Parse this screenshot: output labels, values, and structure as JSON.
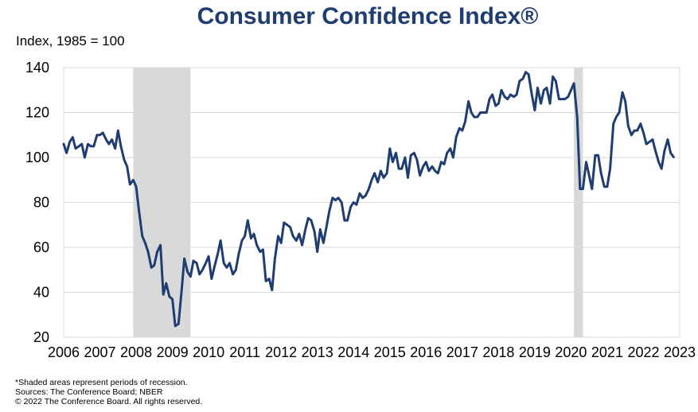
{
  "chart_data": {
    "type": "line",
    "title": "Consumer Confidence Index®",
    "ylabel": "Index, 1985 = 100",
    "xlabel": "",
    "ylim": [
      20,
      140
    ],
    "yticks": [
      20,
      40,
      60,
      80,
      100,
      120,
      140
    ],
    "xlim": [
      2006,
      2023
    ],
    "xticks": [
      2006,
      2007,
      2008,
      2009,
      2010,
      2011,
      2012,
      2013,
      2014,
      2015,
      2016,
      2017,
      2018,
      2019,
      2020,
      2021,
      2022,
      2023
    ],
    "grid": true,
    "recessions": [
      [
        2007.92,
        2009.5
      ],
      [
        2020.08,
        2020.33
      ]
    ],
    "colors": {
      "line": "#1f3d70",
      "recession": "#d9d9d9",
      "grid": "#d9d9d9",
      "title": "#1f3d70"
    },
    "series": [
      {
        "points": [
          [
            2006.0,
            106
          ],
          [
            2006.08,
            102
          ],
          [
            2006.17,
            107
          ],
          [
            2006.25,
            109
          ],
          [
            2006.33,
            104
          ],
          [
            2006.42,
            105
          ],
          [
            2006.5,
            106
          ],
          [
            2006.58,
            100
          ],
          [
            2006.67,
            106
          ],
          [
            2006.75,
            105
          ],
          [
            2006.83,
            105
          ],
          [
            2006.92,
            110
          ],
          [
            2007.0,
            110
          ],
          [
            2007.08,
            111
          ],
          [
            2007.17,
            108
          ],
          [
            2007.25,
            106
          ],
          [
            2007.33,
            108
          ],
          [
            2007.42,
            104
          ],
          [
            2007.5,
            112
          ],
          [
            2007.58,
            105
          ],
          [
            2007.67,
            99
          ],
          [
            2007.75,
            96
          ],
          [
            2007.83,
            88
          ],
          [
            2007.92,
            90
          ],
          [
            2008.0,
            87
          ],
          [
            2008.08,
            76
          ],
          [
            2008.17,
            65
          ],
          [
            2008.25,
            62
          ],
          [
            2008.33,
            58
          ],
          [
            2008.42,
            51
          ],
          [
            2008.5,
            52
          ],
          [
            2008.58,
            58
          ],
          [
            2008.67,
            61
          ],
          [
            2008.75,
            39
          ],
          [
            2008.83,
            44
          ],
          [
            2008.92,
            38
          ],
          [
            2009.0,
            37
          ],
          [
            2009.08,
            25
          ],
          [
            2009.17,
            26
          ],
          [
            2009.25,
            40
          ],
          [
            2009.33,
            55
          ],
          [
            2009.42,
            49
          ],
          [
            2009.5,
            47
          ],
          [
            2009.58,
            54
          ],
          [
            2009.67,
            53
          ],
          [
            2009.75,
            48
          ],
          [
            2009.83,
            50
          ],
          [
            2009.92,
            53
          ],
          [
            2010.0,
            56
          ],
          [
            2010.08,
            46
          ],
          [
            2010.17,
            52
          ],
          [
            2010.25,
            57
          ],
          [
            2010.33,
            63
          ],
          [
            2010.42,
            53
          ],
          [
            2010.5,
            51
          ],
          [
            2010.58,
            53
          ],
          [
            2010.67,
            48
          ],
          [
            2010.75,
            50
          ],
          [
            2010.83,
            57
          ],
          [
            2010.92,
            63
          ],
          [
            2011.0,
            65
          ],
          [
            2011.08,
            72
          ],
          [
            2011.17,
            64
          ],
          [
            2011.25,
            66
          ],
          [
            2011.33,
            61
          ],
          [
            2011.42,
            58
          ],
          [
            2011.5,
            59
          ],
          [
            2011.58,
            45
          ],
          [
            2011.67,
            46
          ],
          [
            2011.75,
            41
          ],
          [
            2011.83,
            55
          ],
          [
            2011.92,
            65
          ],
          [
            2012.0,
            62
          ],
          [
            2012.08,
            71
          ],
          [
            2012.17,
            70
          ],
          [
            2012.25,
            69
          ],
          [
            2012.33,
            65
          ],
          [
            2012.42,
            63
          ],
          [
            2012.5,
            66
          ],
          [
            2012.58,
            61
          ],
          [
            2012.67,
            68
          ],
          [
            2012.75,
            73
          ],
          [
            2012.83,
            72
          ],
          [
            2012.92,
            67
          ],
          [
            2013.0,
            58
          ],
          [
            2013.08,
            68
          ],
          [
            2013.17,
            62
          ],
          [
            2013.25,
            69
          ],
          [
            2013.33,
            76
          ],
          [
            2013.42,
            82
          ],
          [
            2013.5,
            81
          ],
          [
            2013.58,
            82
          ],
          [
            2013.67,
            80
          ],
          [
            2013.75,
            72
          ],
          [
            2013.83,
            72
          ],
          [
            2013.92,
            78
          ],
          [
            2014.0,
            80
          ],
          [
            2014.08,
            79
          ],
          [
            2014.17,
            84
          ],
          [
            2014.25,
            82
          ],
          [
            2014.33,
            83
          ],
          [
            2014.42,
            86
          ],
          [
            2014.5,
            90
          ],
          [
            2014.58,
            93
          ],
          [
            2014.67,
            89
          ],
          [
            2014.75,
            94
          ],
          [
            2014.83,
            91
          ],
          [
            2014.92,
            93
          ],
          [
            2015.0,
            104
          ],
          [
            2015.08,
            98
          ],
          [
            2015.17,
            102
          ],
          [
            2015.25,
            95
          ],
          [
            2015.33,
            95
          ],
          [
            2015.42,
            100
          ],
          [
            2015.5,
            91
          ],
          [
            2015.58,
            101
          ],
          [
            2015.67,
            102
          ],
          [
            2015.75,
            99
          ],
          [
            2015.83,
            92
          ],
          [
            2015.92,
            96
          ],
          [
            2016.0,
            98
          ],
          [
            2016.08,
            94
          ],
          [
            2016.17,
            96
          ],
          [
            2016.25,
            94
          ],
          [
            2016.33,
            93
          ],
          [
            2016.42,
            98
          ],
          [
            2016.5,
            97
          ],
          [
            2016.58,
            102
          ],
          [
            2016.67,
            104
          ],
          [
            2016.75,
            100
          ],
          [
            2016.83,
            109
          ],
          [
            2016.92,
            113
          ],
          [
            2017.0,
            112
          ],
          [
            2017.08,
            116
          ],
          [
            2017.17,
            125
          ],
          [
            2017.25,
            120
          ],
          [
            2017.33,
            118
          ],
          [
            2017.42,
            118
          ],
          [
            2017.5,
            120
          ],
          [
            2017.58,
            120
          ],
          [
            2017.67,
            120
          ],
          [
            2017.75,
            126
          ],
          [
            2017.83,
            128
          ],
          [
            2017.92,
            123
          ],
          [
            2018.0,
            124
          ],
          [
            2018.08,
            130
          ],
          [
            2018.17,
            127
          ],
          [
            2018.25,
            126
          ],
          [
            2018.33,
            128
          ],
          [
            2018.42,
            127
          ],
          [
            2018.5,
            128
          ],
          [
            2018.58,
            134
          ],
          [
            2018.67,
            135
          ],
          [
            2018.75,
            138
          ],
          [
            2018.83,
            137
          ],
          [
            2018.92,
            128
          ],
          [
            2019.0,
            121
          ],
          [
            2019.08,
            131
          ],
          [
            2019.17,
            124
          ],
          [
            2019.25,
            130
          ],
          [
            2019.33,
            131
          ],
          [
            2019.42,
            124
          ],
          [
            2019.5,
            136
          ],
          [
            2019.58,
            134
          ],
          [
            2019.67,
            126
          ],
          [
            2019.75,
            126
          ],
          [
            2019.83,
            126
          ],
          [
            2019.92,
            127
          ],
          [
            2020.0,
            130
          ],
          [
            2020.08,
            133
          ],
          [
            2020.17,
            118
          ],
          [
            2020.25,
            86
          ],
          [
            2020.33,
            86
          ],
          [
            2020.42,
            98
          ],
          [
            2020.5,
            92
          ],
          [
            2020.58,
            86
          ],
          [
            2020.67,
            101
          ],
          [
            2020.75,
            101
          ],
          [
            2020.83,
            93
          ],
          [
            2020.92,
            87
          ],
          [
            2021.0,
            87
          ],
          [
            2021.08,
            95
          ],
          [
            2021.17,
            115
          ],
          [
            2021.25,
            118
          ],
          [
            2021.33,
            120
          ],
          [
            2021.42,
            129
          ],
          [
            2021.5,
            125
          ],
          [
            2021.58,
            114
          ],
          [
            2021.67,
            110
          ],
          [
            2021.75,
            112
          ],
          [
            2021.83,
            112
          ],
          [
            2021.92,
            115
          ],
          [
            2022.0,
            111
          ],
          [
            2022.08,
            106
          ],
          [
            2022.17,
            107
          ],
          [
            2022.25,
            108
          ],
          [
            2022.33,
            103
          ],
          [
            2022.42,
            98
          ],
          [
            2022.5,
            95
          ],
          [
            2022.58,
            103
          ],
          [
            2022.67,
            108
          ],
          [
            2022.75,
            102
          ],
          [
            2022.83,
            100.2
          ]
        ]
      }
    ]
  },
  "footnotes": [
    "*Shaded areas represent periods of recession.",
    "Sources: The Conference Board; NBER",
    "© 2022 The Conference Board. All rights reserved."
  ]
}
